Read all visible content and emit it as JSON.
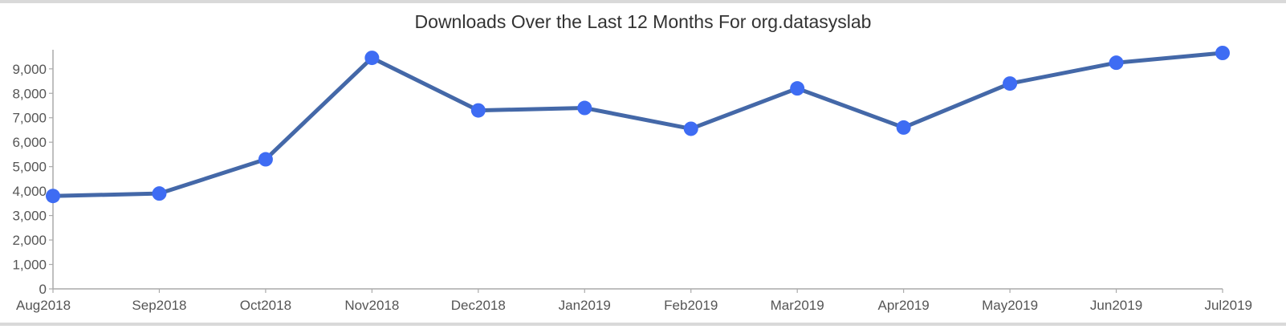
{
  "colors": {
    "line": "#4468a8",
    "marker": "#3e6cf3",
    "axis": "#aaaaaa",
    "text": "#555555",
    "title": "#333333",
    "frame_border": "#d9d9d9"
  },
  "chart_data": {
    "type": "line",
    "title": "Downloads Over the Last 12 Months For org.datasyslab",
    "xlabel": "",
    "ylabel": "",
    "categories": [
      "Aug2018",
      "Sep2018",
      "Oct2018",
      "Nov2018",
      "Dec2018",
      "Jan2019",
      "Feb2019",
      "Mar2019",
      "Apr2019",
      "May2019",
      "Jun2019",
      "Jul2019"
    ],
    "series": [
      {
        "values": [
          3800,
          3900,
          5300,
          9450,
          7300,
          7400,
          6550,
          8200,
          6600,
          8400,
          9250,
          9650
        ]
      }
    ],
    "ylim": [
      0,
      9650
    ],
    "yticks": [
      0,
      1000,
      2000,
      3000,
      4000,
      5000,
      6000,
      7000,
      8000,
      9000
    ],
    "ytick_labels": [
      "0",
      "1,000",
      "2,000",
      "3,000",
      "4,000",
      "5,000",
      "6,000",
      "7,000",
      "8,000",
      "9,000"
    ],
    "grid": false,
    "legend": "none"
  }
}
